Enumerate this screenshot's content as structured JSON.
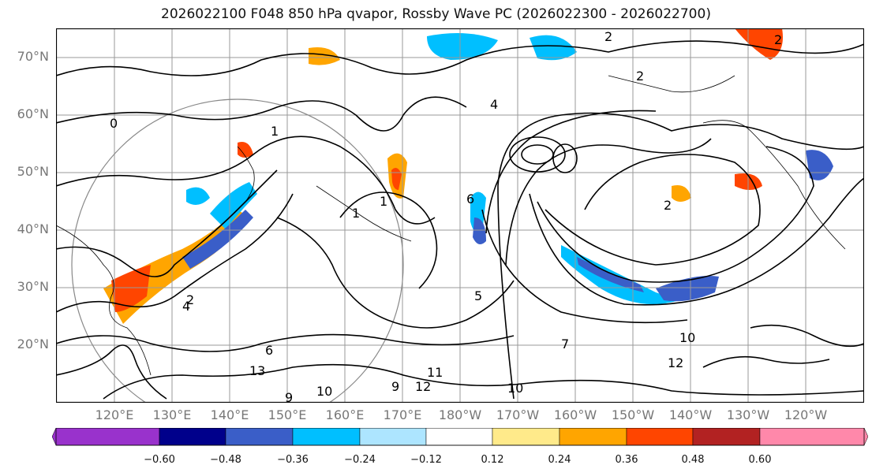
{
  "title": "2026022100 F048 850 hPa qvapor, Rossby Wave PC (2026022300 - 2026022700)",
  "lat_labels": [
    "70°N",
    "60°N",
    "50°N",
    "40°N",
    "30°N",
    "20°N"
  ],
  "lon_labels": [
    "120°E",
    "130°E",
    "140°E",
    "150°E",
    "160°E",
    "170°E",
    "180°W",
    "170°W",
    "160°W",
    "150°W",
    "140°W",
    "130°W",
    "120°W"
  ],
  "contour_labels": [
    "2",
    "2",
    "2",
    "2",
    "0",
    "1",
    "1",
    "1",
    "6",
    "4",
    "2",
    "10",
    "12",
    "11",
    "12",
    "10",
    "13",
    "9",
    "10",
    "9",
    "7",
    "6",
    "5",
    "4"
  ],
  "colorbar": {
    "colors": [
      "#9932cc",
      "#00008b",
      "#3a5ec8",
      "#00bfff",
      "#ade5ff",
      "#ffffff",
      "#ffea8a",
      "#ffa500",
      "#ff4500",
      "#b22222",
      "#ff88aa"
    ],
    "ticks": [
      "−0.60",
      "−0.48",
      "−0.36",
      "−0.24",
      "−0.12",
      "0.12",
      "0.24",
      "0.36",
      "0.48",
      "0.60"
    ]
  }
}
